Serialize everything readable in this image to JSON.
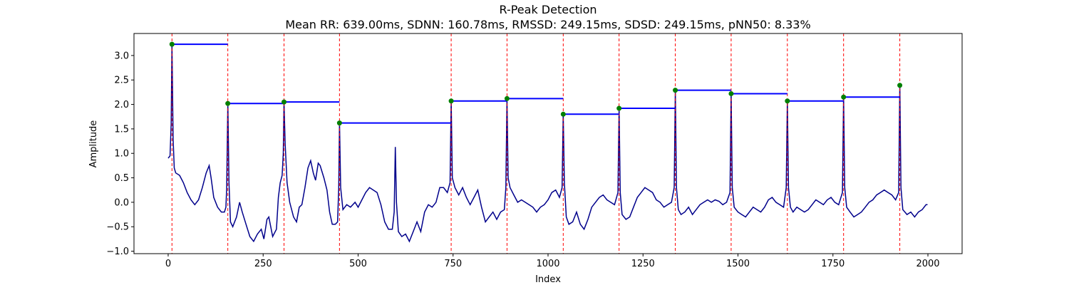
{
  "chart_data": {
    "type": "line",
    "title": "R-Peak Detection",
    "subtitle": "Mean RR: 639.00ms, SDNN: 160.78ms, RMSSD: 249.15ms, SDSD: 249.15ms, pNN50: 8.33%",
    "xlabel": "Index",
    "ylabel": "Amplitude",
    "xlim": [
      -90,
      2090
    ],
    "ylim": [
      -1.05,
      3.45
    ],
    "xticks": [
      0,
      250,
      500,
      750,
      1000,
      1250,
      1500,
      1750,
      2000
    ],
    "yticks": [
      -1.0,
      -0.5,
      0.0,
      0.5,
      1.0,
      1.5,
      2.0,
      2.5,
      3.0
    ],
    "grid": false,
    "colors": {
      "signal": "#00008b",
      "peak_marker": "#008000",
      "peak_line": "#ff0000",
      "rr_segment": "#0000ff"
    },
    "r_peaks": [
      {
        "x": 10,
        "y": 3.23
      },
      {
        "x": 157,
        "y": 2.02
      },
      {
        "x": 305,
        "y": 2.05
      },
      {
        "x": 451,
        "y": 1.62
      },
      {
        "x": 745,
        "y": 2.07
      },
      {
        "x": 892,
        "y": 2.12
      },
      {
        "x": 1040,
        "y": 1.8
      },
      {
        "x": 1187,
        "y": 1.92
      },
      {
        "x": 1335,
        "y": 2.29
      },
      {
        "x": 1482,
        "y": 2.22
      },
      {
        "x": 1630,
        "y": 2.07
      },
      {
        "x": 1778,
        "y": 2.15
      },
      {
        "x": 1926,
        "y": 2.39
      }
    ],
    "signal": [
      [
        0,
        0.9
      ],
      [
        5,
        0.95
      ],
      [
        8,
        1.6
      ],
      [
        10,
        3.23
      ],
      [
        13,
        1.3
      ],
      [
        16,
        0.7
      ],
      [
        20,
        0.6
      ],
      [
        30,
        0.55
      ],
      [
        40,
        0.4
      ],
      [
        50,
        0.2
      ],
      [
        60,
        0.05
      ],
      [
        70,
        -0.05
      ],
      [
        80,
        0.05
      ],
      [
        90,
        0.3
      ],
      [
        100,
        0.6
      ],
      [
        108,
        0.75
      ],
      [
        113,
        0.5
      ],
      [
        120,
        0.1
      ],
      [
        130,
        -0.1
      ],
      [
        140,
        -0.2
      ],
      [
        148,
        -0.2
      ],
      [
        152,
        -0.1
      ],
      [
        154,
        0.3
      ],
      [
        157,
        2.02
      ],
      [
        160,
        0.4
      ],
      [
        164,
        -0.4
      ],
      [
        170,
        -0.5
      ],
      [
        180,
        -0.3
      ],
      [
        188,
        0.0
      ],
      [
        195,
        -0.2
      ],
      [
        205,
        -0.45
      ],
      [
        215,
        -0.7
      ],
      [
        225,
        -0.8
      ],
      [
        235,
        -0.65
      ],
      [
        245,
        -0.55
      ],
      [
        252,
        -0.75
      ],
      [
        260,
        -0.35
      ],
      [
        265,
        -0.3
      ],
      [
        275,
        -0.7
      ],
      [
        285,
        -0.55
      ],
      [
        290,
        0.1
      ],
      [
        295,
        0.4
      ],
      [
        300,
        0.55
      ],
      [
        303,
        1.0
      ],
      [
        305,
        2.05
      ],
      [
        308,
        1.2
      ],
      [
        313,
        0.4
      ],
      [
        320,
        0.0
      ],
      [
        330,
        -0.3
      ],
      [
        338,
        -0.4
      ],
      [
        345,
        -0.1
      ],
      [
        352,
        -0.05
      ],
      [
        360,
        0.3
      ],
      [
        368,
        0.7
      ],
      [
        375,
        0.85
      ],
      [
        382,
        0.6
      ],
      [
        388,
        0.45
      ],
      [
        395,
        0.8
      ],
      [
        400,
        0.75
      ],
      [
        410,
        0.5
      ],
      [
        418,
        0.25
      ],
      [
        425,
        -0.2
      ],
      [
        432,
        -0.45
      ],
      [
        440,
        -0.45
      ],
      [
        446,
        -0.4
      ],
      [
        449,
        0.3
      ],
      [
        451,
        1.62
      ],
      [
        454,
        0.3
      ],
      [
        460,
        -0.15
      ],
      [
        470,
        -0.05
      ],
      [
        480,
        -0.1
      ],
      [
        492,
        0.0
      ],
      [
        500,
        -0.1
      ],
      [
        510,
        0.05
      ],
      [
        520,
        0.2
      ],
      [
        530,
        0.3
      ],
      [
        540,
        0.25
      ],
      [
        550,
        0.2
      ],
      [
        560,
        -0.05
      ],
      [
        570,
        -0.4
      ],
      [
        580,
        -0.55
      ],
      [
        590,
        -0.55
      ],
      [
        595,
        -0.2
      ],
      [
        598,
        1.13
      ],
      [
        601,
        0.0
      ],
      [
        606,
        -0.6
      ],
      [
        615,
        -0.7
      ],
      [
        625,
        -0.65
      ],
      [
        635,
        -0.8
      ],
      [
        645,
        -0.6
      ],
      [
        655,
        -0.4
      ],
      [
        665,
        -0.6
      ],
      [
        675,
        -0.2
      ],
      [
        685,
        -0.05
      ],
      [
        695,
        -0.1
      ],
      [
        705,
        0.0
      ],
      [
        715,
        0.3
      ],
      [
        725,
        0.3
      ],
      [
        735,
        0.2
      ],
      [
        742,
        0.4
      ],
      [
        745,
        2.07
      ],
      [
        748,
        0.5
      ],
      [
        755,
        0.3
      ],
      [
        765,
        0.15
      ],
      [
        775,
        0.3
      ],
      [
        785,
        0.1
      ],
      [
        795,
        -0.05
      ],
      [
        805,
        0.1
      ],
      [
        815,
        0.25
      ],
      [
        825,
        -0.1
      ],
      [
        835,
        -0.4
      ],
      [
        845,
        -0.3
      ],
      [
        855,
        -0.2
      ],
      [
        865,
        -0.35
      ],
      [
        875,
        -0.2
      ],
      [
        885,
        -0.15
      ],
      [
        889,
        0.3
      ],
      [
        892,
        2.12
      ],
      [
        895,
        0.5
      ],
      [
        900,
        0.3
      ],
      [
        910,
        0.15
      ],
      [
        920,
        0.0
      ],
      [
        930,
        0.05
      ],
      [
        940,
        0.0
      ],
      [
        950,
        -0.05
      ],
      [
        960,
        -0.1
      ],
      [
        970,
        -0.2
      ],
      [
        980,
        -0.1
      ],
      [
        990,
        -0.05
      ],
      [
        1000,
        0.05
      ],
      [
        1010,
        0.2
      ],
      [
        1020,
        0.25
      ],
      [
        1030,
        0.1
      ],
      [
        1037,
        0.3
      ],
      [
        1040,
        1.8
      ],
      [
        1043,
        0.4
      ],
      [
        1048,
        -0.3
      ],
      [
        1055,
        -0.45
      ],
      [
        1065,
        -0.4
      ],
      [
        1075,
        -0.2
      ],
      [
        1085,
        -0.45
      ],
      [
        1095,
        -0.55
      ],
      [
        1105,
        -0.35
      ],
      [
        1115,
        -0.1
      ],
      [
        1125,
        0.0
      ],
      [
        1135,
        0.1
      ],
      [
        1145,
        0.15
      ],
      [
        1155,
        0.05
      ],
      [
        1165,
        0.0
      ],
      [
        1175,
        -0.05
      ],
      [
        1184,
        0.2
      ],
      [
        1187,
        1.92
      ],
      [
        1190,
        0.2
      ],
      [
        1195,
        -0.25
      ],
      [
        1205,
        -0.35
      ],
      [
        1215,
        -0.3
      ],
      [
        1225,
        -0.1
      ],
      [
        1235,
        0.1
      ],
      [
        1245,
        0.2
      ],
      [
        1255,
        0.3
      ],
      [
        1265,
        0.25
      ],
      [
        1275,
        0.2
      ],
      [
        1285,
        0.05
      ],
      [
        1295,
        0.0
      ],
      [
        1305,
        -0.1
      ],
      [
        1315,
        -0.05
      ],
      [
        1325,
        0.0
      ],
      [
        1332,
        0.3
      ],
      [
        1335,
        2.29
      ],
      [
        1338,
        0.3
      ],
      [
        1343,
        -0.15
      ],
      [
        1350,
        -0.25
      ],
      [
        1360,
        -0.2
      ],
      [
        1370,
        -0.1
      ],
      [
        1380,
        -0.25
      ],
      [
        1390,
        -0.15
      ],
      [
        1400,
        -0.05
      ],
      [
        1410,
        0.0
      ],
      [
        1420,
        0.05
      ],
      [
        1430,
        0.0
      ],
      [
        1440,
        0.05
      ],
      [
        1450,
        0.02
      ],
      [
        1460,
        -0.05
      ],
      [
        1470,
        0.0
      ],
      [
        1479,
        0.2
      ],
      [
        1482,
        2.22
      ],
      [
        1485,
        0.3
      ],
      [
        1490,
        -0.1
      ],
      [
        1500,
        -0.2
      ],
      [
        1510,
        -0.25
      ],
      [
        1520,
        -0.3
      ],
      [
        1530,
        -0.2
      ],
      [
        1540,
        -0.1
      ],
      [
        1550,
        -0.15
      ],
      [
        1560,
        -0.2
      ],
      [
        1570,
        -0.1
      ],
      [
        1580,
        0.05
      ],
      [
        1590,
        0.1
      ],
      [
        1600,
        0.0
      ],
      [
        1610,
        -0.05
      ],
      [
        1620,
        -0.1
      ],
      [
        1627,
        0.3
      ],
      [
        1630,
        2.07
      ],
      [
        1633,
        0.3
      ],
      [
        1638,
        -0.1
      ],
      [
        1645,
        -0.2
      ],
      [
        1655,
        -0.1
      ],
      [
        1665,
        -0.15
      ],
      [
        1675,
        -0.2
      ],
      [
        1685,
        -0.15
      ],
      [
        1695,
        -0.05
      ],
      [
        1705,
        0.05
      ],
      [
        1715,
        0.0
      ],
      [
        1725,
        -0.05
      ],
      [
        1735,
        0.05
      ],
      [
        1745,
        0.1
      ],
      [
        1755,
        0.0
      ],
      [
        1765,
        -0.05
      ],
      [
        1775,
        0.2
      ],
      [
        1778,
        2.15
      ],
      [
        1781,
        0.3
      ],
      [
        1786,
        -0.1
      ],
      [
        1795,
        -0.2
      ],
      [
        1805,
        -0.3
      ],
      [
        1815,
        -0.25
      ],
      [
        1825,
        -0.2
      ],
      [
        1835,
        -0.1
      ],
      [
        1845,
        0.0
      ],
      [
        1855,
        0.05
      ],
      [
        1865,
        0.15
      ],
      [
        1875,
        0.2
      ],
      [
        1885,
        0.25
      ],
      [
        1895,
        0.2
      ],
      [
        1905,
        0.15
      ],
      [
        1915,
        0.05
      ],
      [
        1923,
        0.2
      ],
      [
        1926,
        2.39
      ],
      [
        1929,
        0.3
      ],
      [
        1934,
        -0.15
      ],
      [
        1945,
        -0.25
      ],
      [
        1955,
        -0.2
      ],
      [
        1965,
        -0.3
      ],
      [
        1975,
        -0.2
      ],
      [
        1985,
        -0.15
      ],
      [
        1995,
        -0.05
      ],
      [
        1999,
        -0.05
      ]
    ]
  }
}
